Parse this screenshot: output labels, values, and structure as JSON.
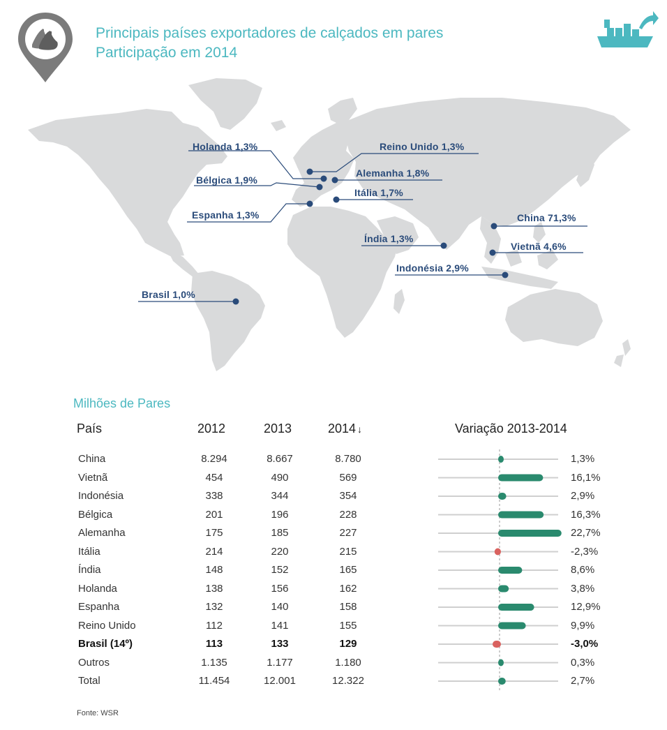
{
  "colors": {
    "accent": "#4cb8c0",
    "map_land": "#d9dadb",
    "marker": "#2a4b7a",
    "positive": "#2a8a6e",
    "negative": "#d9625f",
    "track": "#cfcfcf",
    "pin": "#7b7b7b"
  },
  "header": {
    "title_line1": "Principais países exportadores de calçados em pares",
    "title_line2": "Participação em 2014",
    "pin_icon": "shoes-pin-icon",
    "ship_icon": "cargo-ship-export-icon"
  },
  "map_labels": [
    {
      "text": "Holanda 1,3%"
    },
    {
      "text": "Bélgica 1,9%"
    },
    {
      "text": "Espanha 1,3%"
    },
    {
      "text": "Reino Unido 1,3%"
    },
    {
      "text": "Alemanha 1,8%"
    },
    {
      "text": "Itália 1,7%"
    },
    {
      "text": "Índia 1,3%"
    },
    {
      "text": "China 71,3%"
    },
    {
      "text": "Vietnã 4,6%"
    },
    {
      "text": "Indonésia 2,9%"
    },
    {
      "text": "Brasil 1,0%"
    }
  ],
  "table": {
    "subtitle": "Milhões de Pares",
    "col_country": "País",
    "col_2012": "2012",
    "col_2013": "2013",
    "col_2014": "2014",
    "sort_indicator": "↓",
    "col_variation": "Variação 2013-2014",
    "source": "Fonte: WSR"
  },
  "chart_data": {
    "type": "table",
    "title": "Principais países exportadores de calçados em pares",
    "subtitle": "Participação em 2014",
    "unit": "Milhões de Pares",
    "columns": [
      "País",
      "2012",
      "2013",
      "2014",
      "Variação 2013-2014"
    ],
    "rows": [
      {
        "country": "China",
        "y2012": "8.294",
        "y2013": "8.667",
        "y2014": "8.780",
        "variation": "1,3%",
        "value": 1.3,
        "bold": false
      },
      {
        "country": "Vietnã",
        "y2012": "454",
        "y2013": "490",
        "y2014": "569",
        "variation": "16,1%",
        "value": 16.1,
        "bold": false
      },
      {
        "country": "Indonésia",
        "y2012": "338",
        "y2013": "344",
        "y2014": "354",
        "variation": "2,9%",
        "value": 2.9,
        "bold": false
      },
      {
        "country": "Bélgica",
        "y2012": "201",
        "y2013": "196",
        "y2014": "228",
        "variation": "16,3%",
        "value": 16.3,
        "bold": false
      },
      {
        "country": "Alemanha",
        "y2012": "175",
        "y2013": "185",
        "y2014": "227",
        "variation": "22,7%",
        "value": 22.7,
        "bold": false
      },
      {
        "country": "Itália",
        "y2012": "214",
        "y2013": "220",
        "y2014": "215",
        "variation": "-2,3%",
        "value": -2.3,
        "bold": false
      },
      {
        "country": "Índia",
        "y2012": "148",
        "y2013": "152",
        "y2014": "165",
        "variation": "8,6%",
        "value": 8.6,
        "bold": false
      },
      {
        "country": "Holanda",
        "y2012": "138",
        "y2013": "156",
        "y2014": "162",
        "variation": "3,8%",
        "value": 3.8,
        "bold": false
      },
      {
        "country": "Espanha",
        "y2012": "132",
        "y2013": "140",
        "y2014": "158",
        "variation": "12,9%",
        "value": 12.9,
        "bold": false
      },
      {
        "country": "Reino Unido",
        "y2012": "112",
        "y2013": "141",
        "y2014": "155",
        "variation": "9,9%",
        "value": 9.9,
        "bold": false
      },
      {
        "country": "Brasil (14º)",
        "y2012": "113",
        "y2013": "133",
        "y2014": "129",
        "variation": "-3,0%",
        "value": -3.0,
        "bold": true
      },
      {
        "country": "Outros",
        "y2012": "1.135",
        "y2013": "1.177",
        "y2014": "1.180",
        "variation": "0,3%",
        "value": 0.3,
        "bold": false
      },
      {
        "country": "Total",
        "y2012": "11.454",
        "y2013": "12.001",
        "y2014": "12.322",
        "variation": "2,7%",
        "value": 2.7,
        "bold": false
      }
    ],
    "variation_range": [
      -3.0,
      22.7
    ],
    "map_shares_2014": [
      {
        "country": "Holanda",
        "share": 1.3
      },
      {
        "country": "Bélgica",
        "share": 1.9
      },
      {
        "country": "Espanha",
        "share": 1.3
      },
      {
        "country": "Reino Unido",
        "share": 1.3
      },
      {
        "country": "Alemanha",
        "share": 1.8
      },
      {
        "country": "Itália",
        "share": 1.7
      },
      {
        "country": "Índia",
        "share": 1.3
      },
      {
        "country": "China",
        "share": 71.3
      },
      {
        "country": "Vietnã",
        "share": 4.6
      },
      {
        "country": "Indonésia",
        "share": 2.9
      },
      {
        "country": "Brasil",
        "share": 1.0
      }
    ]
  }
}
